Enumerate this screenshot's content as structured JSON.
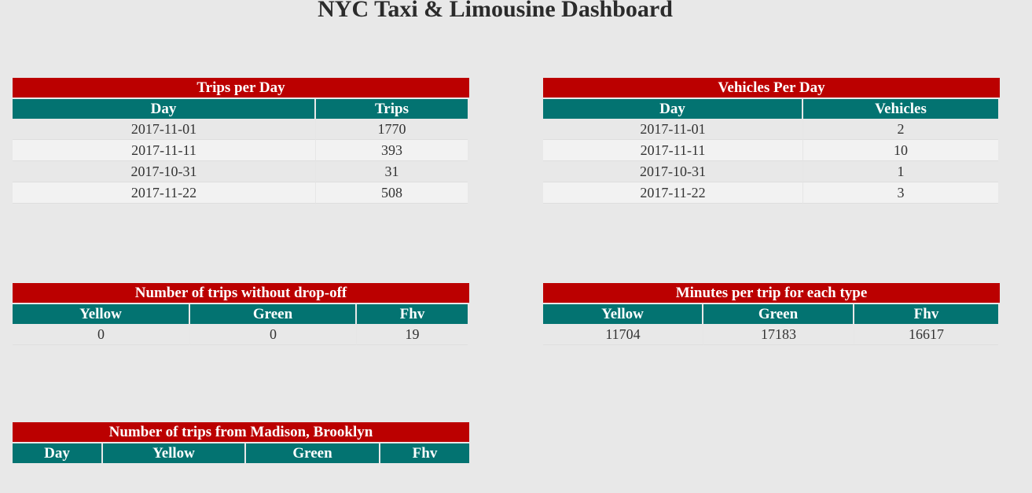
{
  "title": "NYC Taxi & Limousine Dashboard",
  "trips_per_day": {
    "caption": "Trips per Day",
    "headers": [
      "Day",
      "Trips"
    ],
    "rows": [
      [
        "2017-11-01",
        "1770"
      ],
      [
        "2017-11-11",
        "393"
      ],
      [
        "2017-10-31",
        "31"
      ],
      [
        "2017-11-22",
        "508"
      ]
    ]
  },
  "vehicles_per_day": {
    "caption": "Vehicles Per Day",
    "headers": [
      "Day",
      "Vehicles"
    ],
    "rows": [
      [
        "2017-11-01",
        "2"
      ],
      [
        "2017-11-11",
        "10"
      ],
      [
        "2017-10-31",
        "1"
      ],
      [
        "2017-11-22",
        "3"
      ]
    ]
  },
  "trips_without_dropoff": {
    "caption": "Number of trips without drop-off",
    "headers": [
      "Yellow",
      "Green",
      "Fhv"
    ],
    "rows": [
      [
        "0",
        "0",
        "19"
      ]
    ]
  },
  "minutes_per_trip": {
    "caption": "Minutes per trip for each type",
    "headers": [
      "Yellow",
      "Green",
      "Fhv"
    ],
    "rows": [
      [
        "11704",
        "17183",
        "16617"
      ]
    ]
  },
  "trips_from_madison": {
    "caption": "Number of trips from Madison, Brooklyn",
    "headers": [
      "Day",
      "Yellow",
      "Green",
      "Fhv"
    ],
    "rows": []
  },
  "colors": {
    "caption_bg": "#bb0000",
    "header_bg": "#037371",
    "page_bg": "#e8e8e8"
  }
}
